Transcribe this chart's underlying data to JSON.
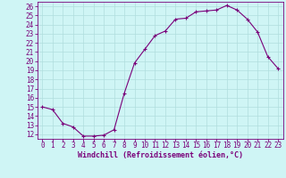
{
  "x": [
    0,
    1,
    2,
    3,
    4,
    5,
    6,
    7,
    8,
    9,
    10,
    11,
    12,
    13,
    14,
    15,
    16,
    17,
    18,
    19,
    20,
    21,
    22,
    23
  ],
  "y": [
    15.0,
    14.7,
    13.2,
    12.8,
    11.8,
    11.8,
    11.9,
    12.5,
    16.5,
    19.8,
    21.3,
    22.8,
    23.3,
    24.6,
    24.7,
    25.4,
    25.5,
    25.6,
    26.1,
    25.6,
    24.6,
    23.2,
    20.5,
    19.2
  ],
  "line_color": "#7a007a",
  "marker": "+",
  "marker_size": 3,
  "marker_color": "#7a007a",
  "bg_color": "#cff5f5",
  "grid_color": "#b0dede",
  "xlabel": "Windchill (Refroidissement éolien,°C)",
  "xlabel_color": "#7a007a",
  "tick_color": "#7a007a",
  "xlim": [
    -0.5,
    23.5
  ],
  "ylim": [
    11.5,
    26.5
  ],
  "yticks": [
    12,
    13,
    14,
    15,
    16,
    17,
    18,
    19,
    20,
    21,
    22,
    23,
    24,
    25,
    26
  ],
  "xticks": [
    0,
    1,
    2,
    3,
    4,
    5,
    6,
    7,
    8,
    9,
    10,
    11,
    12,
    13,
    14,
    15,
    16,
    17,
    18,
    19,
    20,
    21,
    22,
    23
  ],
  "spine_color": "#7a007a",
  "font_size": 5.5,
  "xlabel_fontsize": 6.0,
  "lw": 0.8
}
